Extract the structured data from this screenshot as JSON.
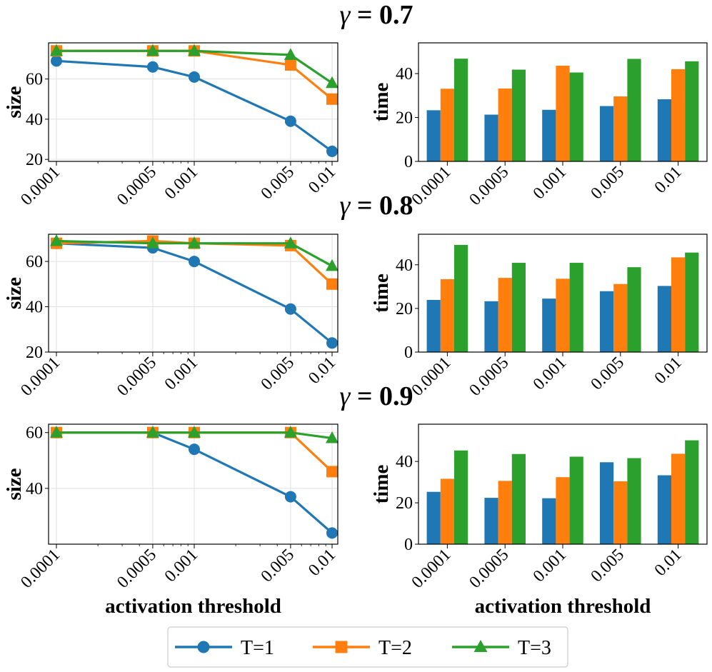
{
  "legend": {
    "entries": [
      {
        "label": "T=1",
        "color": "#1f77b4",
        "marker": "circle"
      },
      {
        "label": "T=2",
        "color": "#ff7f0e",
        "marker": "square"
      },
      {
        "label": "T=3",
        "color": "#2ca02c",
        "marker": "triangle"
      }
    ],
    "placement": "bottom-center"
  },
  "chart_data": [
    {
      "type": "line",
      "group_title": "γ = 0.7",
      "ylabel": "size",
      "xlabel": "",
      "xscale": "log",
      "ylim": [
        19,
        78
      ],
      "grid": true,
      "x": [
        0.0001,
        0.0005,
        0.001,
        0.005,
        0.01
      ],
      "x_tick_labels": [
        "0.0001",
        "0.0005",
        "0.001",
        "0.005",
        "0.01"
      ],
      "y_ticks": [
        20,
        40,
        60
      ],
      "series": [
        {
          "name": "T=1",
          "values": [
            69,
            66,
            61,
            39,
            24
          ]
        },
        {
          "name": "T=2",
          "values": [
            74,
            74,
            74,
            67,
            50
          ]
        },
        {
          "name": "T=3",
          "values": [
            74,
            74,
            74,
            72,
            58
          ]
        }
      ]
    },
    {
      "type": "bar",
      "group_title": "γ = 0.7",
      "ylabel": "time",
      "xlabel": "",
      "ylim": [
        0,
        54
      ],
      "grid": false,
      "categories": [
        "0.0001",
        "0.0005",
        "0.001",
        "0.005",
        "0.01"
      ],
      "y_ticks": [
        0,
        20,
        40
      ],
      "series": [
        {
          "name": "T=1",
          "values": [
            23.3,
            21.3,
            23.5,
            25.2,
            28.3
          ]
        },
        {
          "name": "T=2",
          "values": [
            33.1,
            33.2,
            43.6,
            29.6,
            42.0
          ]
        },
        {
          "name": "T=3",
          "values": [
            46.8,
            41.8,
            40.5,
            46.7,
            45.6
          ]
        }
      ]
    },
    {
      "type": "line",
      "group_title": "γ = 0.8",
      "ylabel": "size",
      "xlabel": "",
      "xscale": "log",
      "ylim": [
        20,
        72
      ],
      "grid": true,
      "x": [
        0.0001,
        0.0005,
        0.001,
        0.005,
        0.01
      ],
      "x_tick_labels": [
        "0.0001",
        "0.0005",
        "0.001",
        "0.005",
        "0.01"
      ],
      "y_ticks": [
        20,
        40,
        60
      ],
      "series": [
        {
          "name": "T=1",
          "values": [
            68,
            66,
            60,
            39,
            24
          ]
        },
        {
          "name": "T=2",
          "values": [
            68,
            69,
            68,
            67,
            50
          ]
        },
        {
          "name": "T=3",
          "values": [
            69,
            68,
            68,
            68,
            58
          ]
        }
      ]
    },
    {
      "type": "bar",
      "group_title": "γ = 0.8",
      "ylabel": "time",
      "xlabel": "",
      "ylim": [
        0,
        54
      ],
      "grid": false,
      "categories": [
        "0.0001",
        "0.0005",
        "0.001",
        "0.005",
        "0.01"
      ],
      "y_ticks": [
        0,
        20,
        40
      ],
      "series": [
        {
          "name": "T=1",
          "values": [
            23.9,
            23.3,
            24.5,
            27.9,
            30.3
          ]
        },
        {
          "name": "T=2",
          "values": [
            33.4,
            34.0,
            33.6,
            31.2,
            43.4
          ]
        },
        {
          "name": "T=3",
          "values": [
            49.1,
            40.9,
            40.9,
            38.9,
            45.6
          ]
        }
      ]
    },
    {
      "type": "line",
      "group_title": "γ = 0.9",
      "ylabel": "size",
      "xlabel": "activation threshold",
      "xscale": "log",
      "ylim": [
        20,
        63
      ],
      "grid": true,
      "x": [
        0.0001,
        0.0005,
        0.001,
        0.005,
        0.01
      ],
      "x_tick_labels": [
        "0.0001",
        "0.0005",
        "0.001",
        "0.005",
        "0.01"
      ],
      "y_ticks": [
        40,
        60
      ],
      "series": [
        {
          "name": "T=1",
          "values": [
            60,
            60,
            54,
            37,
            24
          ]
        },
        {
          "name": "T=2",
          "values": [
            60,
            60,
            60,
            60,
            46
          ]
        },
        {
          "name": "T=3",
          "values": [
            60,
            60,
            60,
            60,
            58
          ]
        }
      ]
    },
    {
      "type": "bar",
      "group_title": "γ = 0.9",
      "ylabel": "time",
      "xlabel": "activation threshold",
      "ylim": [
        0,
        58
      ],
      "grid": false,
      "categories": [
        "0.0001",
        "0.0005",
        "0.001",
        "0.005",
        "0.01"
      ],
      "y_ticks": [
        0,
        20,
        40
      ],
      "series": [
        {
          "name": "T=1",
          "values": [
            25.3,
            22.4,
            22.2,
            39.6,
            33.3
          ]
        },
        {
          "name": "T=2",
          "values": [
            31.6,
            30.6,
            32.4,
            30.4,
            43.7
          ]
        },
        {
          "name": "T=3",
          "values": [
            45.3,
            43.6,
            42.3,
            41.6,
            50.2
          ]
        }
      ]
    }
  ]
}
